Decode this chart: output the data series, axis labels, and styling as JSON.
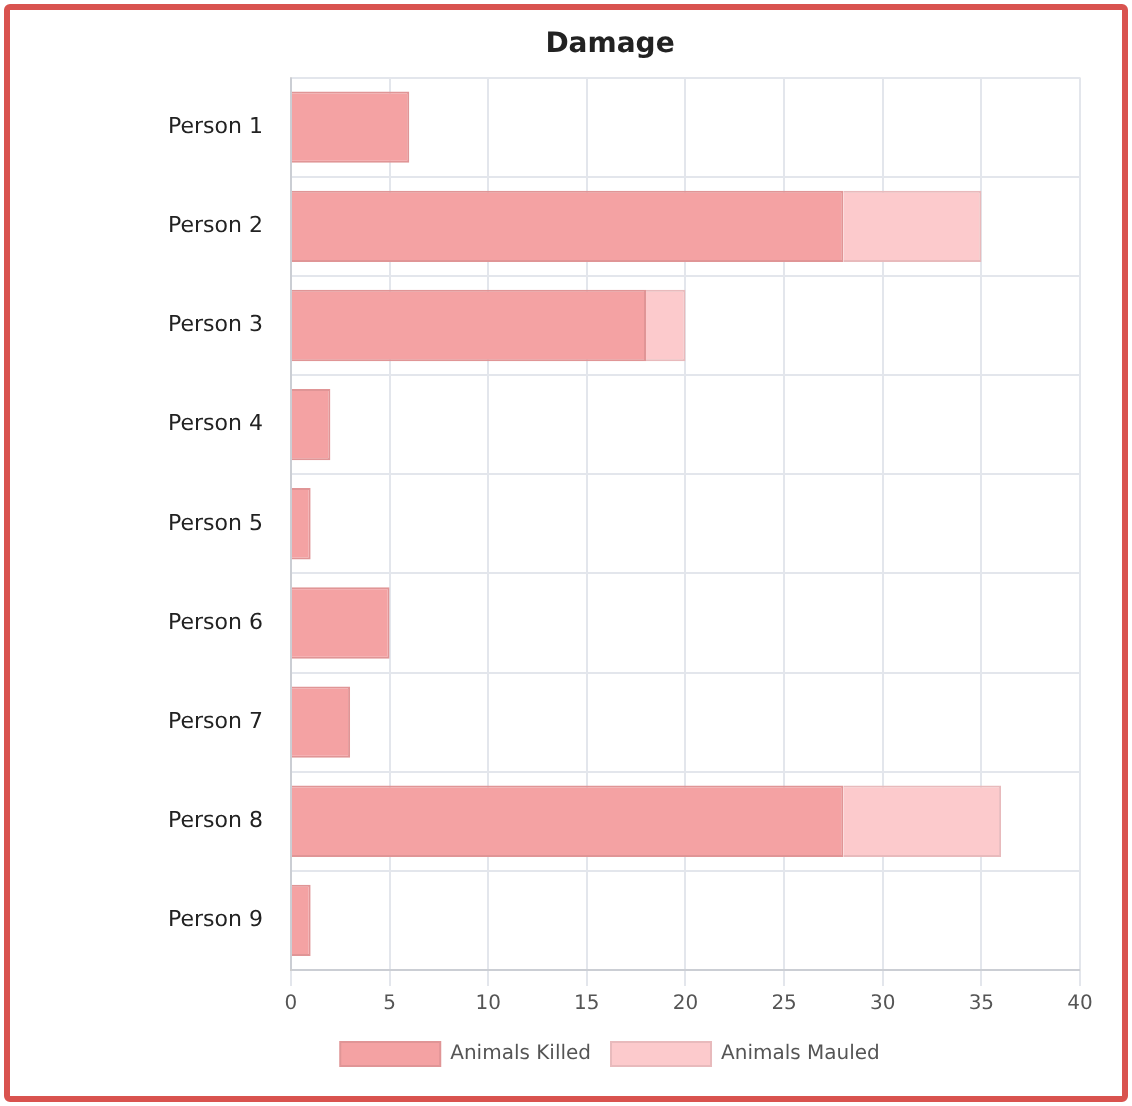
{
  "chart_data": {
    "type": "bar",
    "title": "Damage",
    "orientation": "horizontal",
    "stacked": true,
    "categories": [
      "Person 1",
      "Person 2",
      "Person 3",
      "Person 4",
      "Person 5",
      "Person 6",
      "Person 7",
      "Person 8",
      "Person 9"
    ],
    "series": [
      {
        "name": "Animals Killed",
        "color": "#f4a2a3",
        "values": [
          6,
          28,
          18,
          2,
          1,
          5,
          3,
          28,
          1
        ]
      },
      {
        "name": "Animals Mauled",
        "color": "#fccacc",
        "values": [
          0,
          7,
          2,
          0,
          0,
          0,
          0,
          8,
          0
        ]
      }
    ],
    "xlim": [
      0,
      40
    ],
    "xticks": [
      0,
      5,
      10,
      15,
      20,
      25,
      30,
      35,
      40
    ],
    "grid": true,
    "legend": "bottom"
  }
}
